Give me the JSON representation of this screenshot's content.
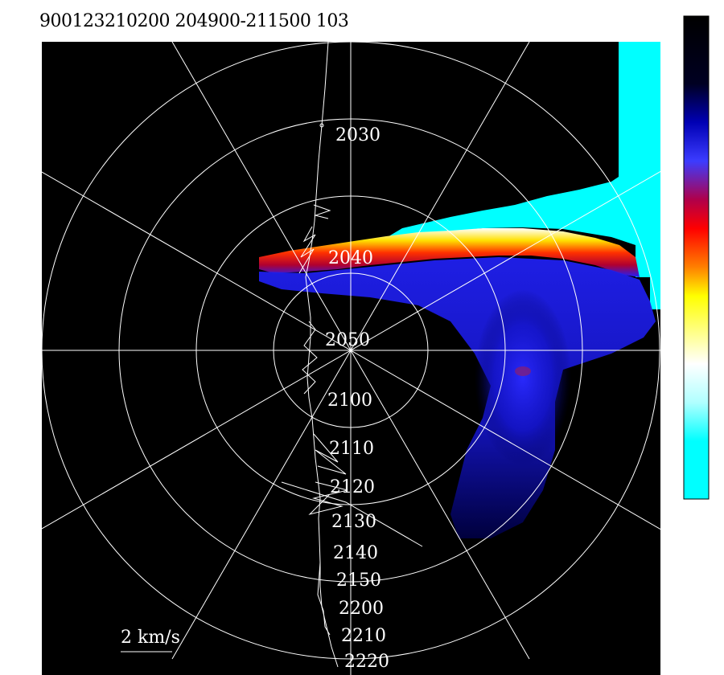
{
  "title": "900123210200 204900-211500 103",
  "scale_label": "2 km/s",
  "colors": {
    "background": "#000000",
    "grid": "#ffffff",
    "trace": "#ffffff",
    "colorbar_stops": [
      "#000000",
      "#000033",
      "#0000c8",
      "#3232ff",
      "#a00050",
      "#ff0000",
      "#ff7800",
      "#ffff00",
      "#ffffff",
      "#00ffff"
    ]
  },
  "chart_data": {
    "type": "heatmap",
    "projection": "polar",
    "ring_count": 4,
    "spoke_angles_deg": [
      0,
      30,
      60,
      90,
      120,
      150
    ],
    "grid": true,
    "colorbar_position": "right",
    "time_labels": [
      {
        "t": "2030"
      },
      {
        "t": "2040"
      },
      {
        "t": "2050"
      },
      {
        "t": "2100"
      },
      {
        "t": "2110"
      },
      {
        "t": "2120"
      },
      {
        "t": "2130"
      },
      {
        "t": "2140"
      },
      {
        "t": "2150"
      },
      {
        "t": "2200"
      },
      {
        "t": "2210"
      },
      {
        "t": "2220"
      }
    ]
  }
}
